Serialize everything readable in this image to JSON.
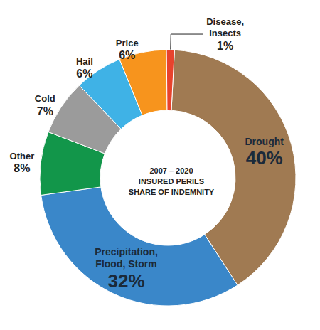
{
  "chart_data": {
    "type": "donut",
    "title": "2007 – 2020\nINSURED PERILS\nSHARE OF INDEMNITY",
    "categories": [
      "Drought",
      "Precipitation, Flood, Storm",
      "Other",
      "Cold",
      "Hail",
      "Price",
      "Disease, Insects"
    ],
    "values": [
      40,
      32,
      8,
      7,
      6,
      6,
      1
    ],
    "value_labels": [
      "40%",
      "32%",
      "8%",
      "7%",
      "6%",
      "6%",
      "1%"
    ],
    "colors": [
      "#a07a52",
      "#3a87c9",
      "#12964a",
      "#9b9b9b",
      "#3fb2e6",
      "#f7941d",
      "#e8432d"
    ],
    "data_labels": true
  }
}
